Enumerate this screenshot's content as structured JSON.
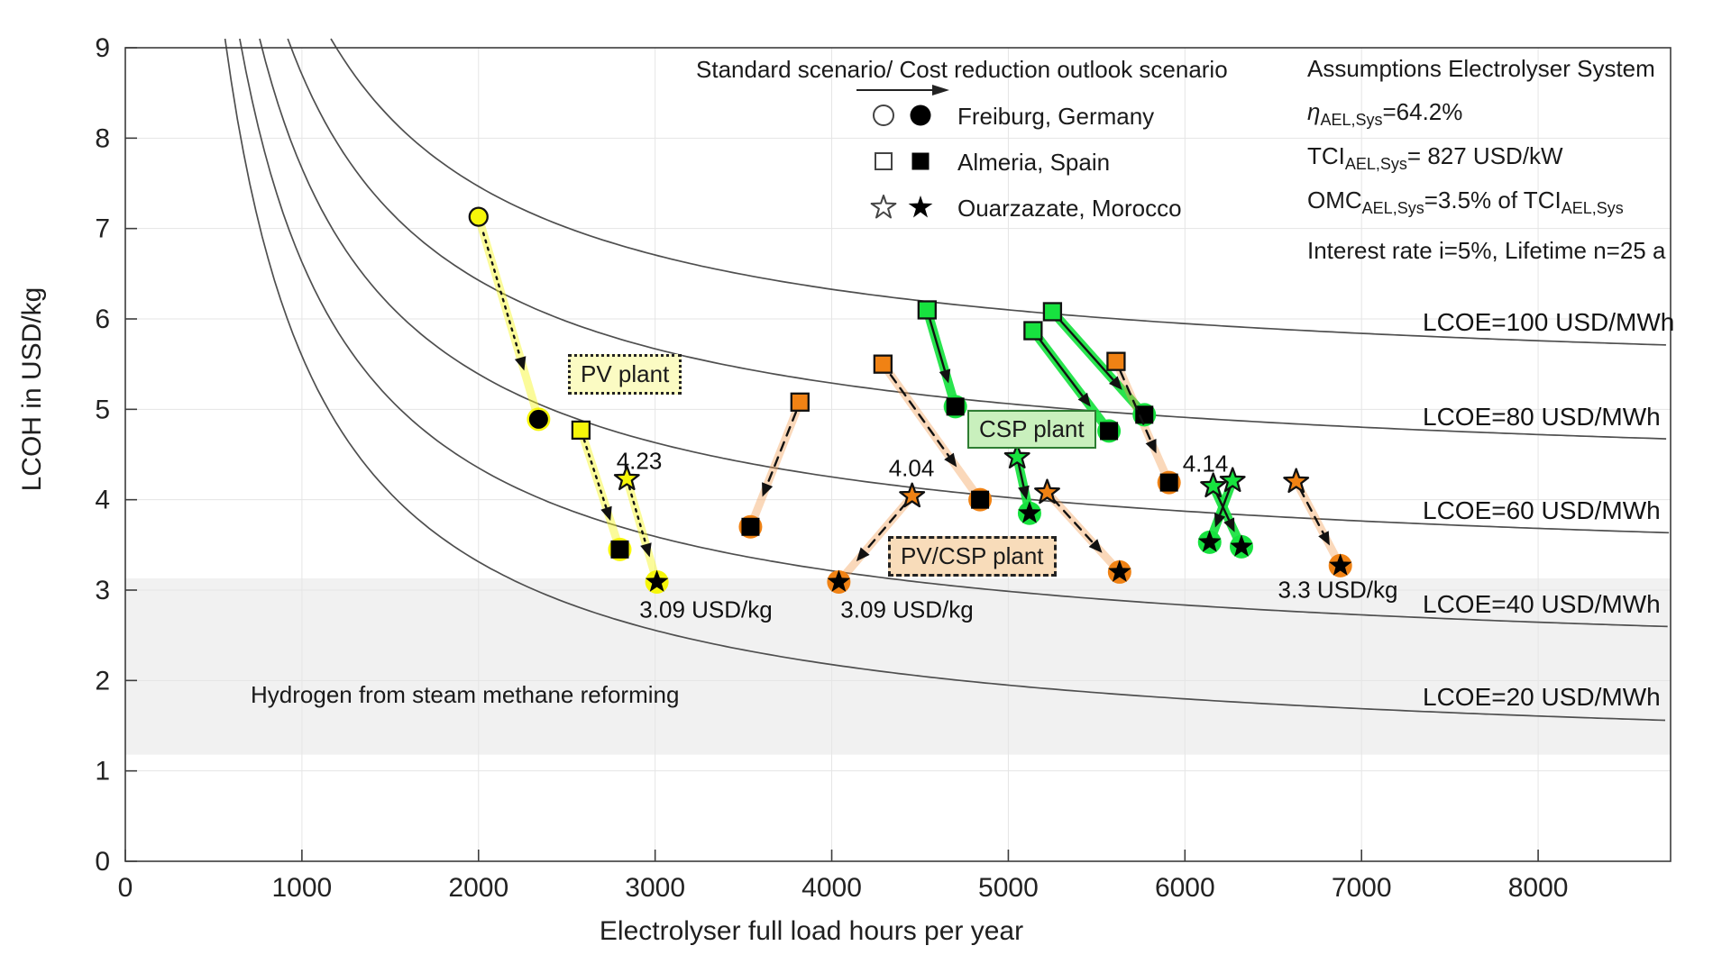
{
  "chart_data": {
    "type": "scatter",
    "title": "",
    "xlabel": "Electrolyser full load hours per year",
    "ylabel": "LCOH in USD/kg",
    "xlim": [
      0,
      8750
    ],
    "ylim": [
      0,
      9
    ],
    "x_ticks": [
      0,
      1000,
      2000,
      3000,
      4000,
      5000,
      6000,
      7000,
      8000
    ],
    "y_ticks": [
      0,
      1,
      2,
      3,
      4,
      5,
      6,
      7,
      8,
      9
    ],
    "grid": true,
    "iso_curves": {
      "formula": "LCOH = 4552/FLH + 0.0519*LCOE",
      "lcoe_values": [
        20,
        40,
        60,
        80,
        100
      ],
      "labels": [
        {
          "text": "LCOE=100 USD/MWh"
        },
        {
          "text": "LCOE=80 USD/MWh"
        },
        {
          "text": "LCOE=60 USD/MWh"
        },
        {
          "text": "LCOE=40 USD/MWh"
        },
        {
          "text": "LCOE=20 USD/MWh"
        }
      ]
    },
    "smr_band": {
      "label": "Hydrogen from steam methane reforming",
      "lcoh_range": [
        1.18,
        3.13
      ]
    },
    "series": [
      {
        "plant": "PV plant",
        "location": "Freiburg, Germany",
        "marker": "circle",
        "color_key": "pv",
        "arrow": "dotted",
        "standard": [
          2000,
          7.13
        ],
        "outlook": [
          2340,
          4.89
        ]
      },
      {
        "plant": "PV plant",
        "location": "Almeria, Spain",
        "marker": "square",
        "color_key": "pv",
        "arrow": "dotted",
        "standard": [
          2580,
          4.77
        ],
        "outlook": [
          2800,
          3.45
        ]
      },
      {
        "plant": "PV plant",
        "location": "Ouarzazate, Morocco",
        "marker": "star",
        "color_key": "pv",
        "arrow": "dotted",
        "standard": [
          2840,
          4.23
        ],
        "outlook": [
          3010,
          3.09
        ]
      },
      {
        "plant": "CSP plant",
        "location": "Almeria, Spain",
        "marker": "square",
        "color_key": "csp",
        "arrow": "solid",
        "standard": [
          4540,
          6.1
        ],
        "outlook": [
          4700,
          5.03
        ]
      },
      {
        "plant": "CSP plant",
        "location": "Almeria, Spain",
        "marker": "square",
        "color_key": "csp",
        "arrow": "solid",
        "standard": [
          5140,
          5.87
        ],
        "outlook": [
          5570,
          4.76
        ]
      },
      {
        "plant": "CSP plant",
        "location": "Almeria, Spain",
        "marker": "square",
        "color_key": "csp",
        "arrow": "solid",
        "standard": [
          5250,
          6.08
        ],
        "outlook": [
          5770,
          4.94
        ]
      },
      {
        "plant": "CSP plant",
        "location": "Ouarzazate, Morocco",
        "marker": "star",
        "color_key": "csp",
        "arrow": "solid",
        "standard": [
          5050,
          4.47
        ],
        "outlook": [
          5120,
          3.85
        ]
      },
      {
        "plant": "CSP plant",
        "location": "Ouarzazate, Morocco",
        "marker": "star",
        "color_key": "csp",
        "arrow": "solid",
        "standard": [
          6160,
          4.15
        ],
        "outlook": [
          6320,
          3.48
        ]
      },
      {
        "plant": "CSP plant",
        "location": "Ouarzazate, Morocco",
        "marker": "star",
        "color_key": "csp",
        "arrow": "solid",
        "standard": [
          6270,
          4.21
        ],
        "outlook": [
          6140,
          3.53
        ]
      },
      {
        "plant": "PV/CSP plant",
        "location": "Almeria, Spain",
        "marker": "square",
        "color_key": "pvcsp",
        "arrow": "dashed",
        "standard": [
          3820,
          5.08
        ],
        "outlook": [
          3540,
          3.7
        ]
      },
      {
        "plant": "PV/CSP plant",
        "location": "Almeria, Spain",
        "marker": "square",
        "color_key": "pvcsp",
        "arrow": "dashed",
        "standard": [
          4290,
          5.5
        ],
        "outlook": [
          4840,
          4.0
        ]
      },
      {
        "plant": "PV/CSP plant",
        "location": "Almeria, Spain",
        "marker": "square",
        "color_key": "pvcsp",
        "arrow": "dashed",
        "standard": [
          5610,
          5.53
        ],
        "outlook": [
          5910,
          4.19
        ]
      },
      {
        "plant": "PV/CSP plant",
        "location": "Ouarzazate, Morocco",
        "marker": "star",
        "color_key": "pvcsp",
        "arrow": "dashed",
        "standard": [
          4455,
          4.04
        ],
        "outlook": [
          4040,
          3.09
        ]
      },
      {
        "plant": "PV/CSP plant",
        "location": "Ouarzazate, Morocco",
        "marker": "star",
        "color_key": "pvcsp",
        "arrow": "dashed",
        "standard": [
          5220,
          4.08
        ],
        "outlook": [
          5630,
          3.2
        ]
      },
      {
        "plant": "PV/CSP plant",
        "location": "Ouarzazate, Morocco",
        "marker": "star",
        "color_key": "pvcsp",
        "arrow": "dashed",
        "standard": [
          6630,
          4.2
        ],
        "outlook": [
          6880,
          3.27
        ]
      }
    ],
    "annotations": [
      {
        "text": "4.23"
      },
      {
        "text": "4.04"
      },
      {
        "text": "4.14"
      },
      {
        "text": "3.09 USD/kg"
      },
      {
        "text": "3.09 USD/kg"
      },
      {
        "text": "3.3 USD/kg"
      }
    ],
    "plant_labels": [
      {
        "text": "PV plant"
      },
      {
        "text": "CSP plant"
      },
      {
        "text": "PV/CSP plant"
      }
    ],
    "colors": {
      "pv": "#f6f60a",
      "pv_line": "rgba(247,247,30,0.45)",
      "csp": "#17e23f",
      "csp_line": "rgba(23,226,63,0.92)",
      "pvcsp": "#f08214",
      "pvcsp_line": "rgba(242,153,74,0.38)",
      "curve": "#4f4f4f",
      "grid": "#e5e5e5",
      "band": "#f1f1f1",
      "axis": "#3c3c3c",
      "tick_text": "#222222"
    }
  },
  "legend": {
    "title": "Standard scenario/ Cost reduction outlook scenario",
    "items": [
      {
        "label": "Freiburg, Germany"
      },
      {
        "label": "Almeria, Spain"
      },
      {
        "label": "Ouarzazate, Morocco"
      }
    ]
  },
  "assumptions": {
    "heading": "Assumptions Electrolyser System",
    "eta_symbol": "η",
    "eta_sub": "AEL,Sys",
    "eta_value": "=64.2%",
    "tci_prefix": "TCI",
    "tci_sub": "AEL,Sys",
    "tci_value": "= 827 USD/kW",
    "omc_prefix": "OMC",
    "omc_sub": "AEL,Sys",
    "omc_value": "=3.5% of TCI",
    "omc_sub2": "AEL,Sys",
    "finance": "Interest rate i=5%, Lifetime n=25 a"
  }
}
